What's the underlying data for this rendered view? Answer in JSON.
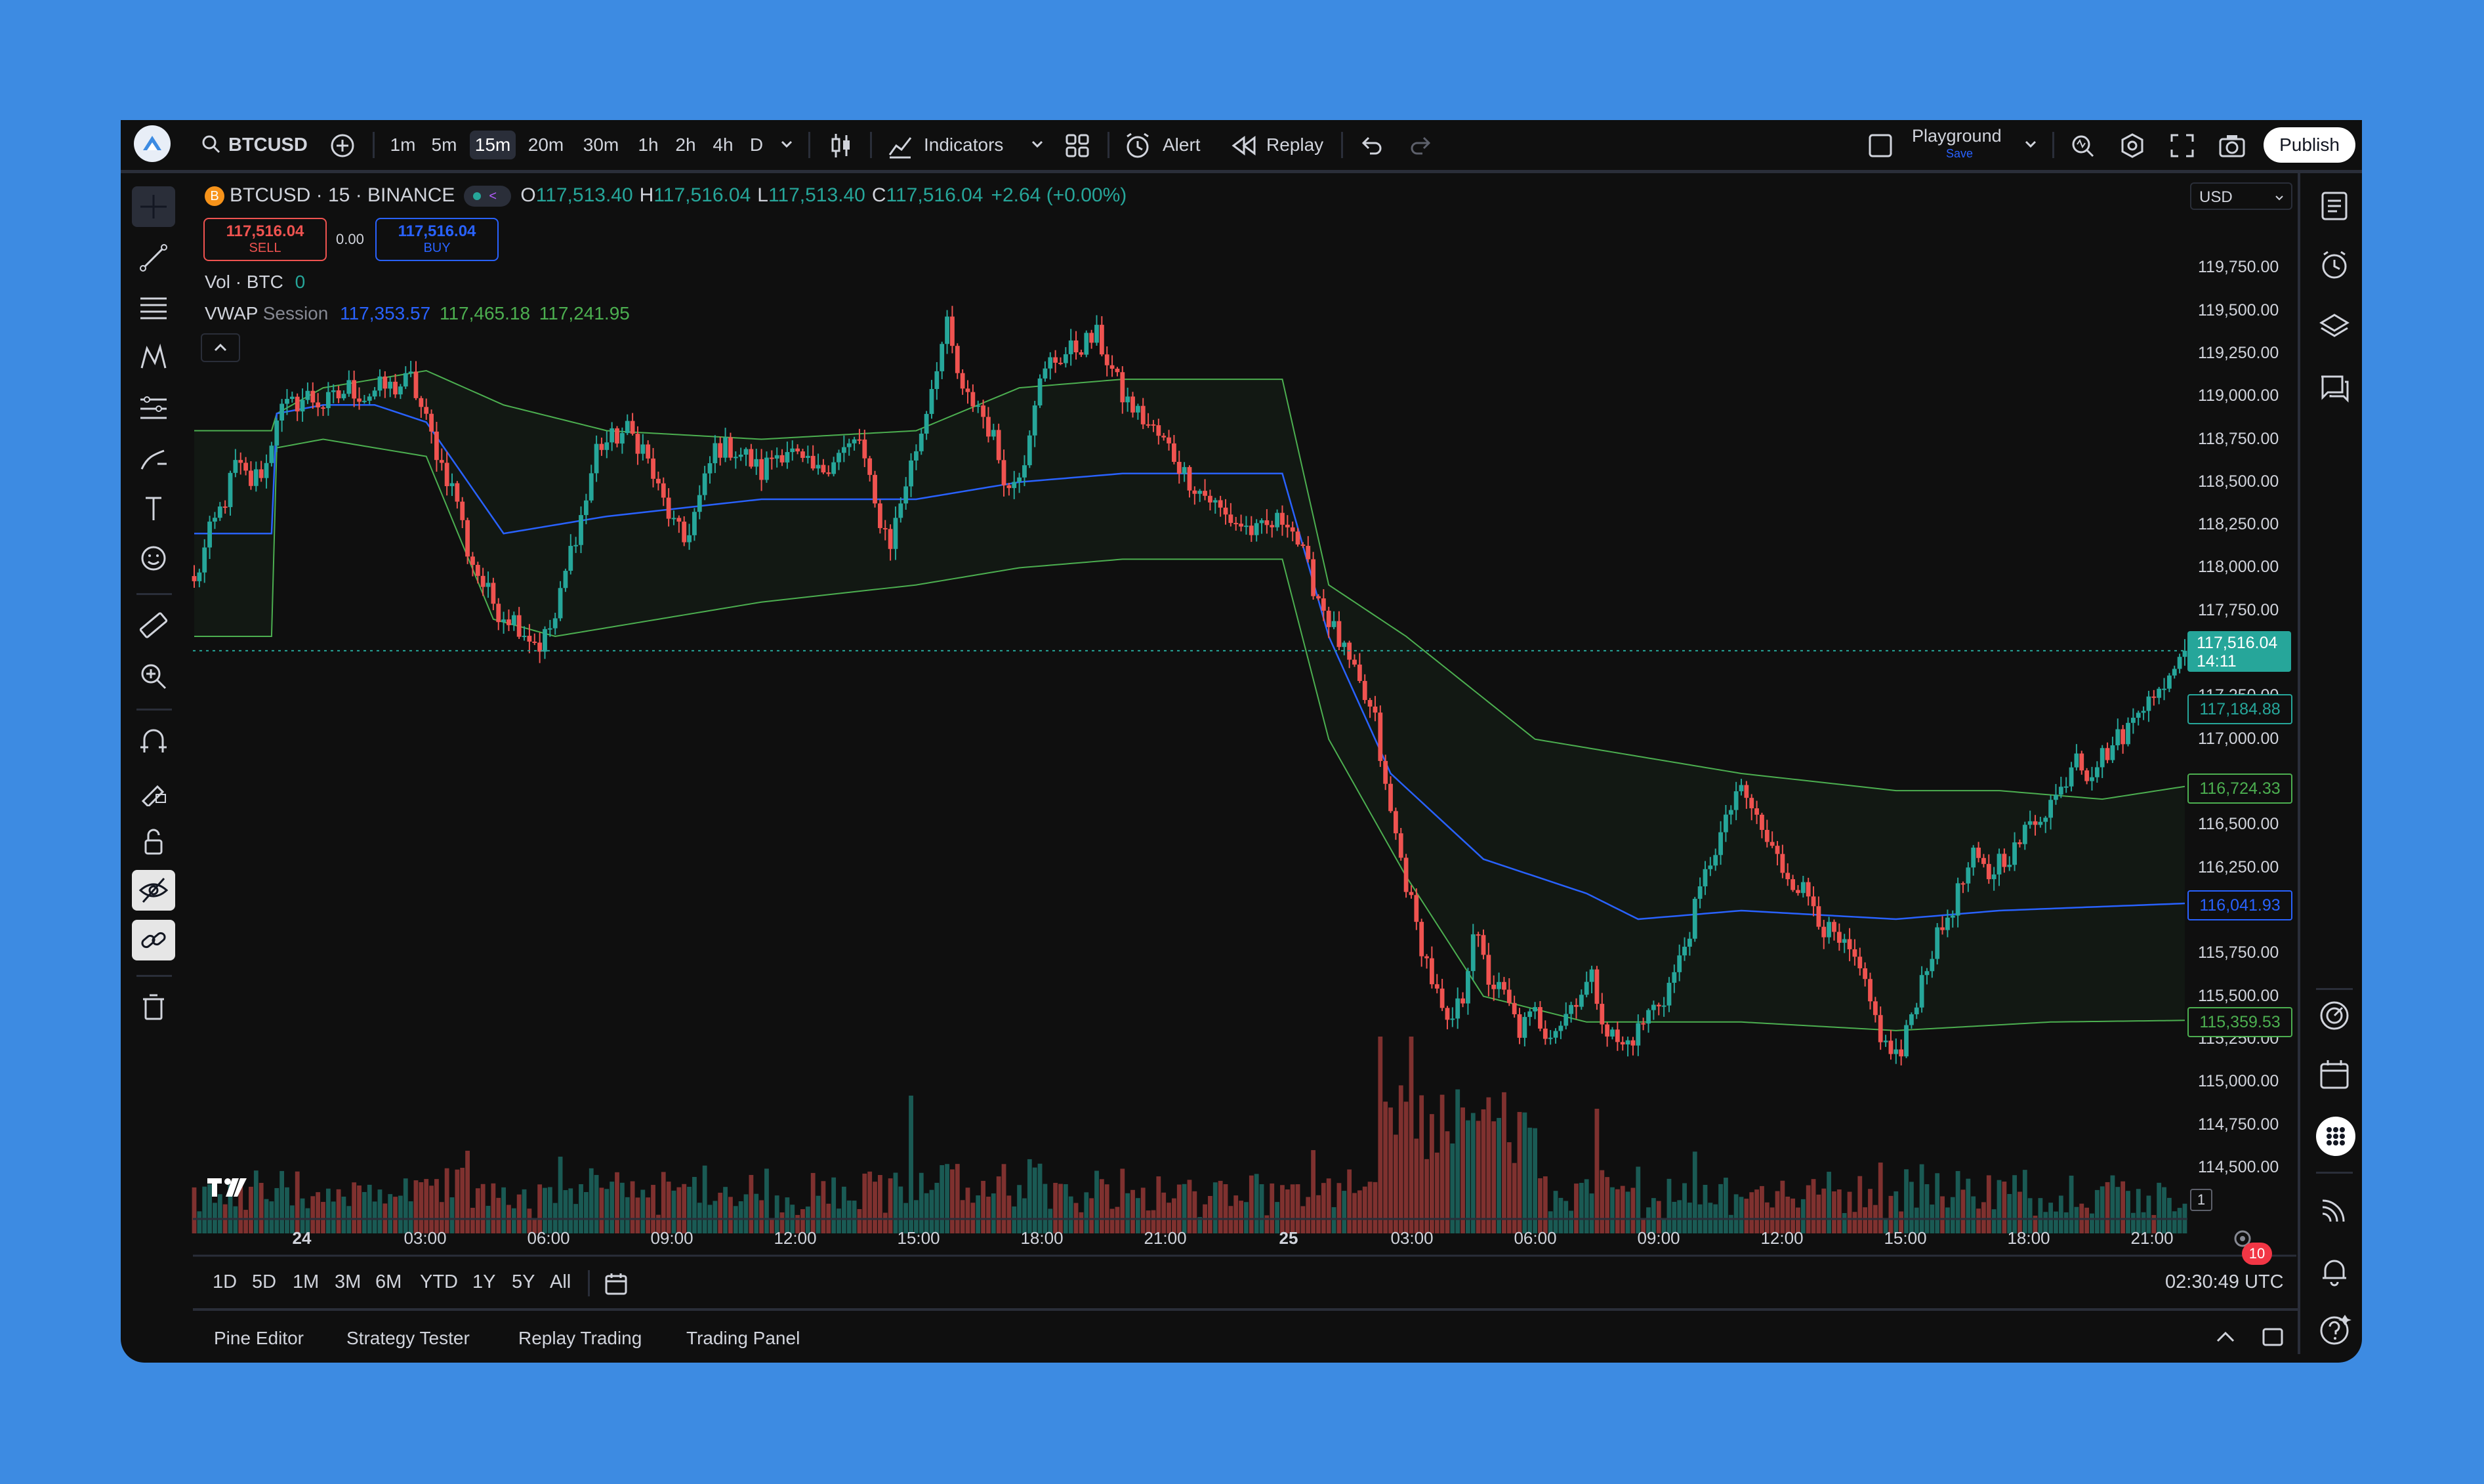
{
  "symbol": {
    "ticker": "BTCUSD",
    "full": "BTCUSD · 15 · BINANCE",
    "icon": "B"
  },
  "toolbar": {
    "timeframes": [
      "1m",
      "5m",
      "15m",
      "20m",
      "30m",
      "1h",
      "2h",
      "4h",
      "D"
    ],
    "active_timeframe": "15m",
    "indicators_label": "Indicators",
    "alert_label": "Alert",
    "replay_label": "Replay",
    "layout_name": "Playground",
    "layout_sub": "Save",
    "publish_label": "Publish"
  },
  "legend": {
    "ohlc": [
      {
        "k": "O",
        "v": "117,513.40"
      },
      {
        "k": "H",
        "v": "117,516.04"
      },
      {
        "k": "L",
        "v": "117,513.40"
      },
      {
        "k": "C",
        "v": "117,516.04"
      }
    ],
    "change": "+2.64 (+0.00%)",
    "sell_price": "117,516.04",
    "sell_label": "SELL",
    "buy_price": "117,516.04",
    "buy_label": "BUY",
    "spread": "0.00",
    "vol_label": "Vol · BTC",
    "vol_value": "0",
    "vwap_label": "VWAP",
    "vwap_mode": "Session",
    "vwap_values": [
      "117,353.57",
      "117,465.18",
      "117,241.95"
    ]
  },
  "price_axis": {
    "currency": "USD",
    "labels": [
      "119,750.00",
      "119,500.00",
      "119,250.00",
      "119,000.00",
      "118,750.00",
      "118,500.00",
      "118,250.00",
      "118,000.00",
      "117,750.00",
      "117,250.00",
      "117,000.00",
      "116,500.00",
      "116,250.00",
      "115,750.00",
      "115,500.00",
      "115,250.00",
      "115,000.00",
      "114,750.00",
      "114,500.00"
    ],
    "current_price": "117,516.04",
    "countdown": "14:11",
    "badges": [
      {
        "value": "117,184.88",
        "color": "#26a69a"
      },
      {
        "value": "116,724.33",
        "color": "#4caf50"
      },
      {
        "value": "116,041.93",
        "color": "#2962ff"
      },
      {
        "value": "115,359.53",
        "color": "#4caf50"
      }
    ],
    "scale_marker": "1"
  },
  "time_axis": {
    "labels": [
      "24",
      "03:00",
      "06:00",
      "09:00",
      "12:00",
      "15:00",
      "18:00",
      "21:00",
      "25",
      "03:00",
      "06:00",
      "09:00",
      "12:00",
      "15:00",
      "18:00",
      "21:00"
    ]
  },
  "range_bar": {
    "ranges": [
      "1D",
      "5D",
      "1M",
      "3M",
      "6M",
      "YTD",
      "1Y",
      "5Y",
      "All"
    ],
    "clock": "02:30:49 UTC"
  },
  "bottom_tabs": [
    "Pine Editor",
    "Strategy Tester",
    "Replay Trading",
    "Trading Panel"
  ],
  "notifications_count": "10",
  "watermark": "TV",
  "colors": {
    "up": "#26a69a",
    "down": "#ef5350",
    "vwap": "#2962ff",
    "band": "#4caf50",
    "bg": "#0f0f0f"
  },
  "chart_data": {
    "type": "candlestick",
    "interval": "15m",
    "ylim": [
      114400,
      119950
    ],
    "x_ticks": [
      "24",
      "03:00",
      "06:00",
      "09:00",
      "12:00",
      "15:00",
      "18:00",
      "21:00",
      "25",
      "03:00",
      "06:00",
      "09:00",
      "12:00",
      "15:00",
      "18:00",
      "21:00"
    ],
    "close_path": [
      [
        0,
        117900
      ],
      [
        3,
        118200
      ],
      [
        6,
        118400
      ],
      [
        8,
        118600
      ],
      [
        11,
        118500
      ],
      [
        14,
        118600
      ],
      [
        16,
        118900
      ],
      [
        19,
        118950
      ],
      [
        22,
        119000
      ],
      [
        25,
        118950
      ],
      [
        28,
        119000
      ],
      [
        30,
        119050
      ],
      [
        33,
        119000
      ],
      [
        36,
        119050
      ],
      [
        39,
        119050
      ],
      [
        42,
        119100
      ],
      [
        45,
        118850
      ],
      [
        48,
        118600
      ],
      [
        51,
        118400
      ],
      [
        53,
        118100
      ],
      [
        56,
        117900
      ],
      [
        59,
        117750
      ],
      [
        62,
        117700
      ],
      [
        65,
        117600
      ],
      [
        67,
        117550
      ],
      [
        70,
        117700
      ],
      [
        73,
        118100
      ],
      [
        76,
        118400
      ],
      [
        78,
        118700
      ],
      [
        81,
        118750
      ],
      [
        84,
        118800
      ],
      [
        87,
        118700
      ],
      [
        90,
        118450
      ],
      [
        93,
        118250
      ],
      [
        95,
        118150
      ],
      [
        98,
        118400
      ],
      [
        101,
        118700
      ],
      [
        104,
        118700
      ],
      [
        107,
        118650
      ],
      [
        110,
        118550
      ],
      [
        112,
        118650
      ],
      [
        115,
        118700
      ],
      [
        118,
        118600
      ],
      [
        121,
        118550
      ],
      [
        124,
        118650
      ],
      [
        127,
        118700
      ],
      [
        129,
        118750
      ],
      [
        132,
        118350
      ],
      [
        135,
        118150
      ],
      [
        138,
        118500
      ],
      [
        141,
        118800
      ],
      [
        144,
        119200
      ],
      [
        146,
        119400
      ],
      [
        149,
        119000
      ],
      [
        152,
        118950
      ],
      [
        155,
        118750
      ],
      [
        158,
        118450
      ],
      [
        161,
        118650
      ],
      [
        163,
        119000
      ],
      [
        166,
        119200
      ],
      [
        169,
        119250
      ],
      [
        172,
        119300
      ],
      [
        175,
        119350
      ],
      [
        178,
        119150
      ],
      [
        180,
        119000
      ],
      [
        183,
        118900
      ],
      [
        186,
        118800
      ],
      [
        189,
        118700
      ],
      [
        192,
        118550
      ],
      [
        195,
        118450
      ],
      [
        197,
        118400
      ],
      [
        200,
        118300
      ],
      [
        203,
        118250
      ],
      [
        206,
        118200
      ],
      [
        209,
        118250
      ],
      [
        212,
        118300
      ],
      [
        214,
        118150
      ],
      [
        217,
        117900
      ],
      [
        220,
        117700
      ],
      [
        223,
        117500
      ],
      [
        226,
        117300
      ],
      [
        229,
        117100
      ],
      [
        231,
        116700
      ],
      [
        234,
        116300
      ],
      [
        237,
        115900
      ],
      [
        240,
        115600
      ],
      [
        243,
        115300
      ],
      [
        246,
        115500
      ],
      [
        248,
        115900
      ],
      [
        251,
        115600
      ],
      [
        254,
        115500
      ],
      [
        257,
        115300
      ],
      [
        260,
        115400
      ],
      [
        262,
        115300
      ],
      [
        265,
        115350
      ],
      [
        268,
        115500
      ],
      [
        271,
        115600
      ],
      [
        274,
        115300
      ],
      [
        277,
        115200
      ],
      [
        280,
        115300
      ],
      [
        282,
        115400
      ],
      [
        285,
        115500
      ],
      [
        288,
        115700
      ],
      [
        291,
        116000
      ],
      [
        294,
        116300
      ],
      [
        297,
        116500
      ],
      [
        299,
        116700
      ],
      [
        302,
        116600
      ],
      [
        305,
        116400
      ],
      [
        308,
        116250
      ],
      [
        311,
        116150
      ],
      [
        314,
        116050
      ],
      [
        316,
        115900
      ],
      [
        319,
        115800
      ],
      [
        322,
        115700
      ],
      [
        325,
        115450
      ],
      [
        328,
        115200
      ],
      [
        331,
        115150
      ],
      [
        333,
        115400
      ],
      [
        336,
        115700
      ],
      [
        339,
        115900
      ],
      [
        342,
        116100
      ],
      [
        345,
        116300
      ],
      [
        348,
        116200
      ],
      [
        350,
        116300
      ],
      [
        353,
        116350
      ],
      [
        356,
        116500
      ],
      [
        359,
        116600
      ],
      [
        362,
        116700
      ],
      [
        365,
        116950
      ],
      [
        367,
        116800
      ],
      [
        370,
        116900
      ],
      [
        373,
        117000
      ],
      [
        376,
        117100
      ],
      [
        379,
        117300
      ],
      [
        382,
        117250
      ],
      [
        384,
        117450
      ],
      [
        386,
        117516.04
      ]
    ],
    "vwap_path": [
      [
        0,
        118200
      ],
      [
        15,
        118200
      ],
      [
        16,
        118900
      ],
      [
        25,
        118950
      ],
      [
        35,
        118950
      ],
      [
        45,
        118850
      ],
      [
        60,
        118200
      ],
      [
        80,
        118300
      ],
      [
        110,
        118400
      ],
      [
        140,
        118400
      ],
      [
        160,
        118500
      ],
      [
        180,
        118550
      ],
      [
        211,
        118550
      ],
      [
        220,
        117600
      ],
      [
        232,
        116800
      ],
      [
        250,
        116300
      ],
      [
        270,
        116100
      ],
      [
        280,
        115950
      ],
      [
        300,
        116000
      ],
      [
        330,
        115950
      ],
      [
        350,
        116000
      ],
      [
        386,
        116041.93
      ]
    ],
    "upper_band_path": [
      [
        0,
        118800
      ],
      [
        15,
        118800
      ],
      [
        16,
        118900
      ],
      [
        25,
        119050
      ],
      [
        45,
        119150
      ],
      [
        60,
        118950
      ],
      [
        80,
        118800
      ],
      [
        110,
        118750
      ],
      [
        140,
        118800
      ],
      [
        160,
        119050
      ],
      [
        180,
        119100
      ],
      [
        211,
        119100
      ],
      [
        220,
        117900
      ],
      [
        235,
        117600
      ],
      [
        260,
        117000
      ],
      [
        280,
        116900
      ],
      [
        300,
        116800
      ],
      [
        330,
        116700
      ],
      [
        350,
        116700
      ],
      [
        370,
        116650
      ],
      [
        386,
        116724.33
      ]
    ],
    "lower_band_path": [
      [
        0,
        117600
      ],
      [
        15,
        117600
      ],
      [
        16,
        118700
      ],
      [
        25,
        118750
      ],
      [
        45,
        118650
      ],
      [
        58,
        117700
      ],
      [
        70,
        117600
      ],
      [
        110,
        117800
      ],
      [
        140,
        117900
      ],
      [
        160,
        118000
      ],
      [
        180,
        118050
      ],
      [
        211,
        118050
      ],
      [
        220,
        117000
      ],
      [
        235,
        116200
      ],
      [
        250,
        115500
      ],
      [
        270,
        115350
      ],
      [
        300,
        115350
      ],
      [
        330,
        115300
      ],
      [
        360,
        115350
      ],
      [
        386,
        115359.53
      ]
    ]
  }
}
